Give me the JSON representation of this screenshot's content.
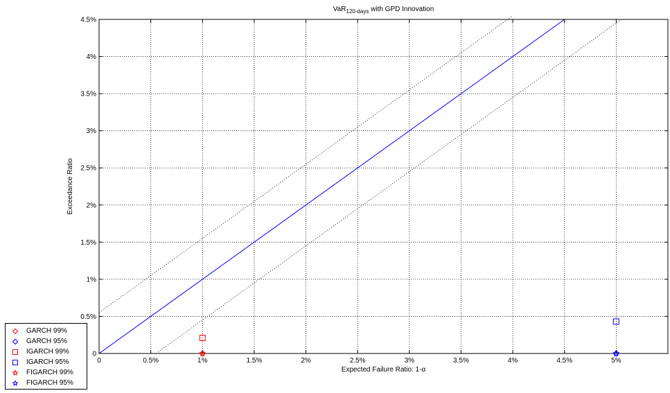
{
  "chart_data": {
    "type": "scatter",
    "title_main": "VaR",
    "title_sub": "120-days",
    "title_rest": " with GPD Innovation",
    "xlabel": "Expected Failure Ratio: 1-α",
    "ylabel": "Exceedance Ratio",
    "xlim": [
      0,
      5.5
    ],
    "ylim": [
      0,
      4.5
    ],
    "grid": true,
    "x_ticks": [
      0,
      0.5,
      1,
      1.5,
      2,
      2.5,
      3,
      3.5,
      4,
      4.5,
      5
    ],
    "x_tick_labels": [
      "0",
      "0.5%",
      "1%",
      "1.5%",
      "2%",
      "2.5%",
      "3%",
      "3.5%",
      "4%",
      "4.5%",
      "5%"
    ],
    "y_ticks": [
      0,
      0.5,
      1,
      1.5,
      2,
      2.5,
      3,
      3.5,
      4,
      4.5
    ],
    "y_tick_labels": [
      "0",
      "0.5%",
      "1%",
      "1.5%",
      "2%",
      "2.5%",
      "3%",
      "3.5%",
      "4%",
      "4.5%"
    ],
    "reference_lines": [
      {
        "style": "solid",
        "color": "#0000ff",
        "points": [
          [
            0,
            0
          ],
          [
            4.5,
            4.5
          ]
        ]
      },
      {
        "style": "dotted",
        "color": "#000000",
        "points": [
          [
            0,
            0.55
          ],
          [
            4.0,
            4.55
          ]
        ]
      },
      {
        "style": "dotted",
        "color": "#000000",
        "points": [
          [
            0.55,
            0
          ],
          [
            5.05,
            4.5
          ]
        ]
      }
    ],
    "legend_position": "bottom-left, outside",
    "series": [
      {
        "name": "GARCH 99%",
        "marker": "diamond",
        "color": "#ff0000",
        "points": [
          [
            1,
            0
          ]
        ]
      },
      {
        "name": "GARCH 95%",
        "marker": "diamond",
        "color": "#0000ff",
        "points": [
          [
            5,
            0
          ]
        ]
      },
      {
        "name": "IGARCH 99%",
        "marker": "square",
        "color": "#ff0000",
        "points": [
          [
            1,
            0.21
          ]
        ]
      },
      {
        "name": "IGARCH 95%",
        "marker": "square",
        "color": "#0000ff",
        "points": [
          [
            5,
            0.43
          ]
        ]
      },
      {
        "name": "FIGARCH 99%",
        "marker": "star",
        "color": "#ff0000",
        "points": [
          [
            1,
            0
          ]
        ]
      },
      {
        "name": "FIGARCH 95%",
        "marker": "star",
        "color": "#0000ff",
        "points": [
          [
            5,
            0
          ]
        ]
      }
    ]
  }
}
